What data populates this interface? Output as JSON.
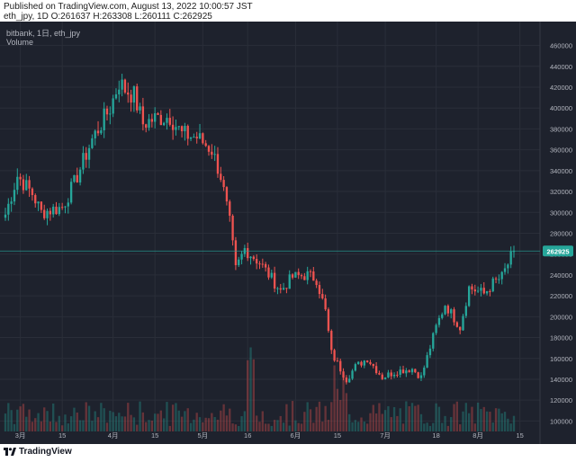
{
  "header": {
    "published": "Published on TradingView.com, August 13, 2022 10:00:57 JST",
    "ohlc": "eth_jpy, 1D O:261637 H:263308 L:260111 C:262925"
  },
  "chart": {
    "symbol_line": "bitbank, 1日, eth_jpy",
    "volume_label": "Volume",
    "last_price_label": "262925"
  },
  "footer": {
    "brand": "TradingView"
  },
  "colors": {
    "background": "#1e222d",
    "up": "#26a69a",
    "down": "#ef5350",
    "grid": "#2a2e39",
    "text": "#b2b5be",
    "price_line": "#26a69a"
  },
  "chart_data": {
    "type": "candlestick",
    "title": "bitbank, 1日, eth_jpy",
    "y_ticks": [
      100000,
      120000,
      140000,
      160000,
      180000,
      200000,
      220000,
      240000,
      260000,
      280000,
      300000,
      320000,
      340000,
      360000,
      380000,
      400000,
      420000,
      440000,
      460000
    ],
    "y_tick_labels": [
      "100000",
      "120000",
      "140000",
      "160000",
      "180000",
      "200000",
      "220000",
      "240000",
      "260000",
      "280000",
      "300000",
      "320000",
      "340000",
      "360000",
      "380000",
      "400000",
      "420000",
      "440000",
      "460000"
    ],
    "ylim": [
      90000,
      476000
    ],
    "x_ticks": [
      {
        "label": "3月",
        "date": "2022-03-01"
      },
      {
        "label": "15",
        "date": "2022-03-15"
      },
      {
        "label": "4月",
        "date": "2022-04-01"
      },
      {
        "label": "15",
        "date": "2022-04-15"
      },
      {
        "label": "5月",
        "date": "2022-05-01"
      },
      {
        "label": "16",
        "date": "2022-05-16"
      },
      {
        "label": "6月",
        "date": "2022-06-01"
      },
      {
        "label": "15",
        "date": "2022-06-15"
      },
      {
        "label": "7月",
        "date": "2022-07-01"
      },
      {
        "label": "18",
        "date": "2022-07-18"
      },
      {
        "label": "8月",
        "date": "2022-08-01"
      },
      {
        "label": "15",
        "date": "2022-08-15"
      }
    ],
    "x_start": "2022-02-24",
    "last_close": 262925,
    "close_keypoints": [
      [
        "2022-02-24",
        298000
      ],
      [
        "2022-02-28",
        335000
      ],
      [
        "2022-03-05",
        318000
      ],
      [
        "2022-03-08",
        300000
      ],
      [
        "2022-03-15",
        305000
      ],
      [
        "2022-03-19",
        328000
      ],
      [
        "2022-03-25",
        370000
      ],
      [
        "2022-03-31",
        400000
      ],
      [
        "2022-04-03",
        425000
      ],
      [
        "2022-04-05",
        418000
      ],
      [
        "2022-04-08",
        412000
      ],
      [
        "2022-04-11",
        385000
      ],
      [
        "2022-04-15",
        390000
      ],
      [
        "2022-04-20",
        392000
      ],
      [
        "2022-04-24",
        375000
      ],
      [
        "2022-04-29",
        372000
      ],
      [
        "2022-05-04",
        360000
      ],
      [
        "2022-05-07",
        335000
      ],
      [
        "2022-05-10",
        290000
      ],
      [
        "2022-05-12",
        245000
      ],
      [
        "2022-05-15",
        265000
      ],
      [
        "2022-05-20",
        252000
      ],
      [
        "2022-05-27",
        225000
      ],
      [
        "2022-05-31",
        238000
      ],
      [
        "2022-06-05",
        240000
      ],
      [
        "2022-06-08",
        236000
      ],
      [
        "2022-06-11",
        205000
      ],
      [
        "2022-06-13",
        165000
      ],
      [
        "2022-06-18",
        140000
      ],
      [
        "2022-06-21",
        152000
      ],
      [
        "2022-06-25",
        160000
      ],
      [
        "2022-06-30",
        142000
      ],
      [
        "2022-07-05",
        148000
      ],
      [
        "2022-07-10",
        150000
      ],
      [
        "2022-07-13",
        142000
      ],
      [
        "2022-07-18",
        190000
      ],
      [
        "2022-07-21",
        212000
      ],
      [
        "2022-07-26",
        190000
      ],
      [
        "2022-07-29",
        228000
      ],
      [
        "2022-08-03",
        222000
      ],
      [
        "2022-08-06",
        232000
      ],
      [
        "2022-08-09",
        238000
      ],
      [
        "2022-08-13",
        262925
      ]
    ]
  }
}
